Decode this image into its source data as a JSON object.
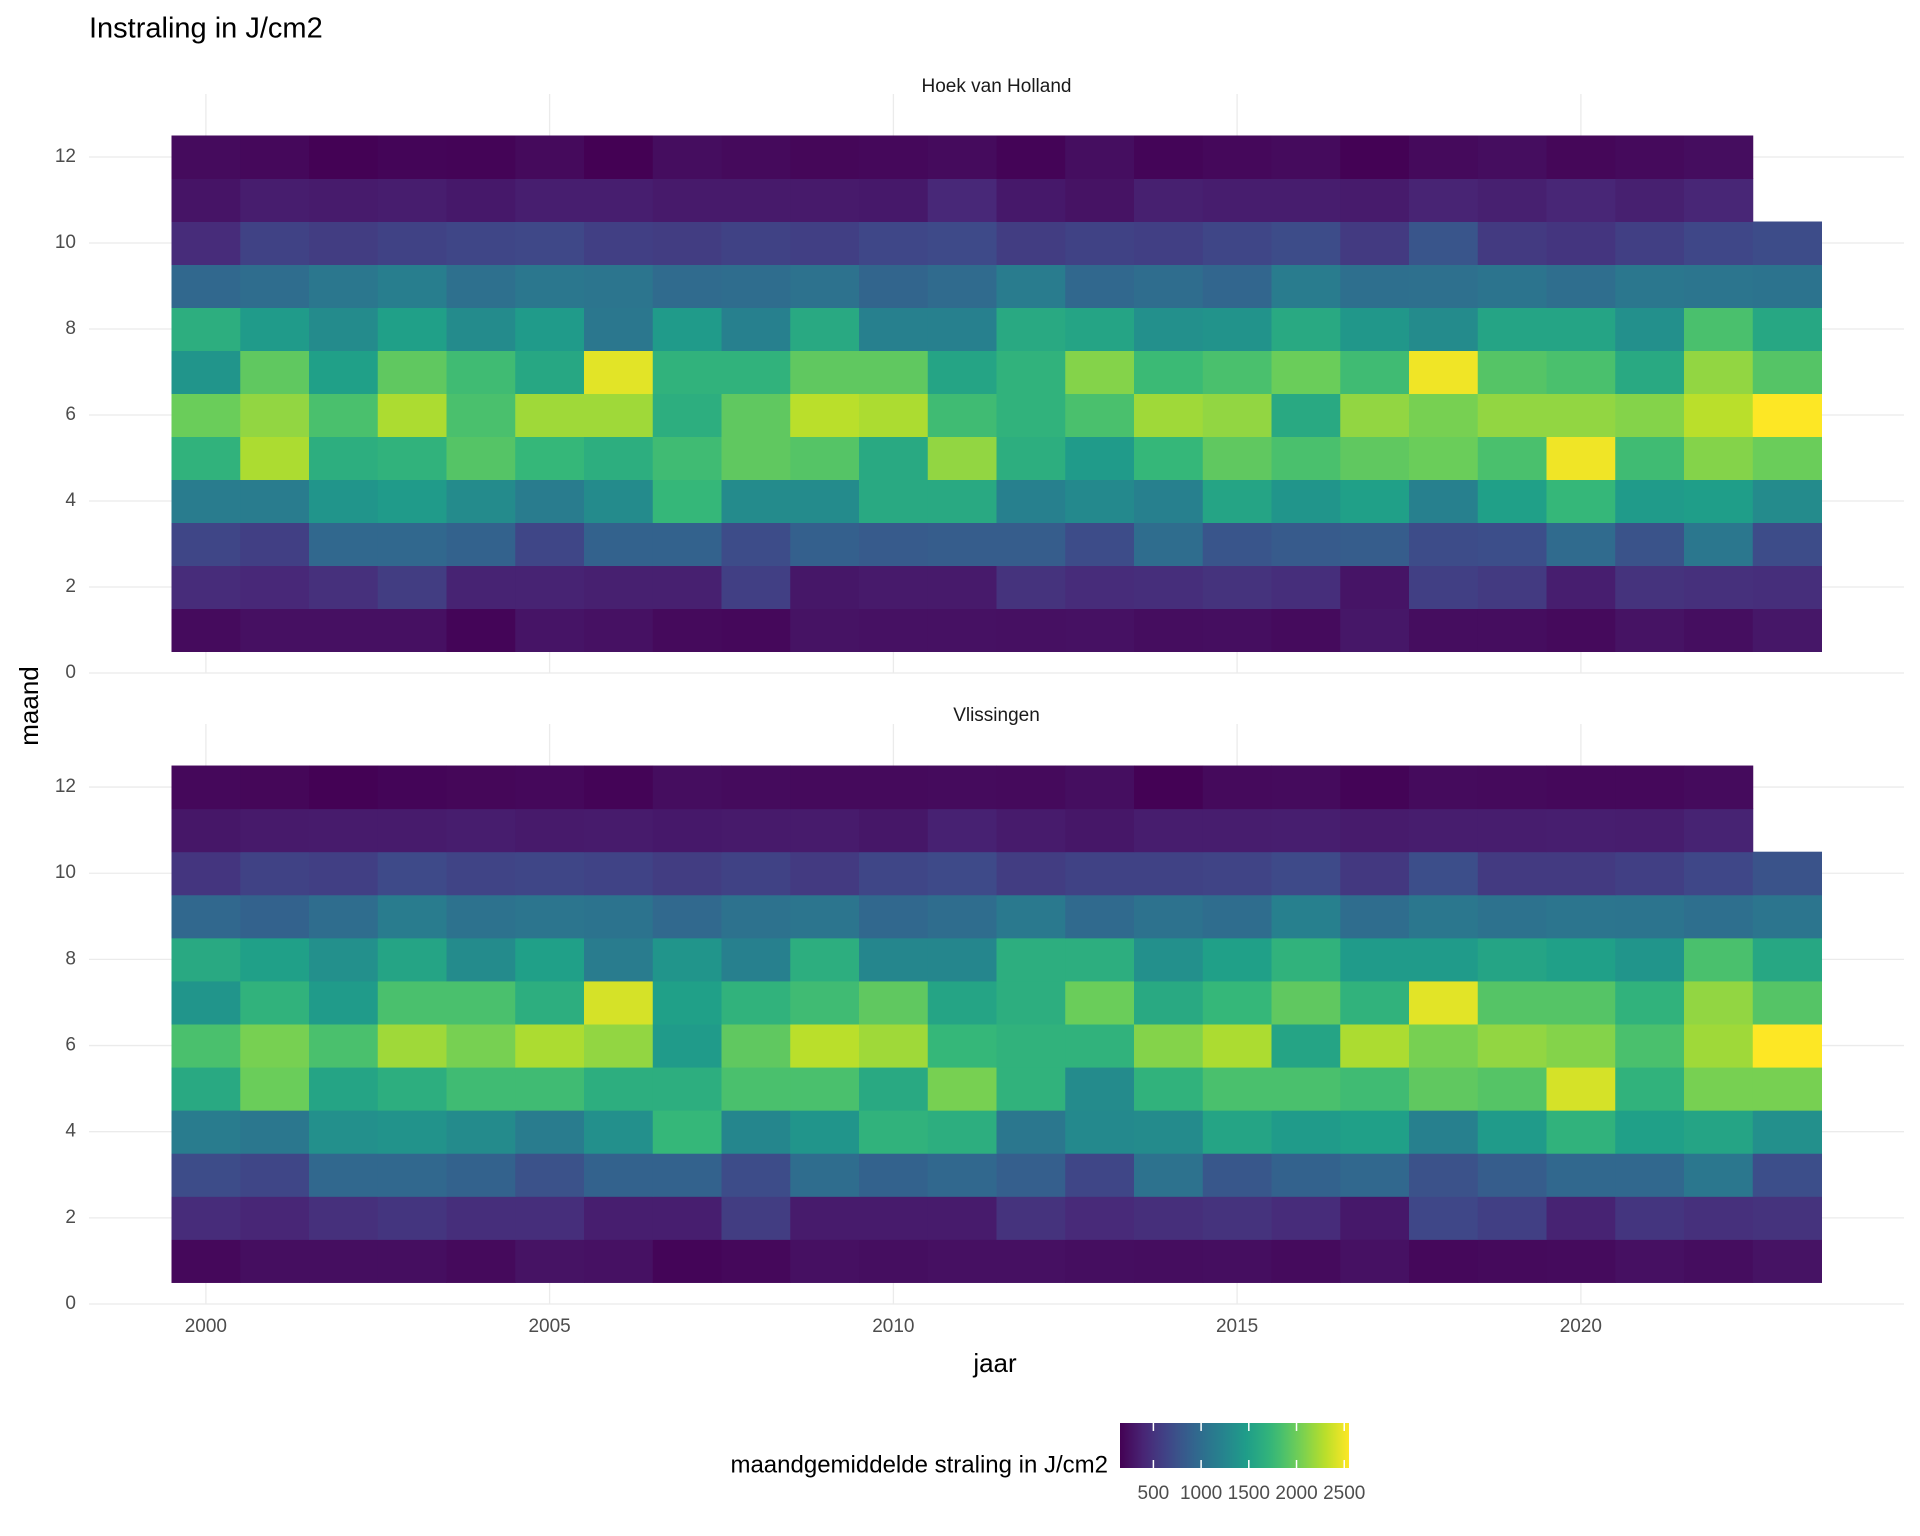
{
  "chart_data": {
    "type": "heatmap",
    "title": "Instraling in J/cm2",
    "x_label": "jaar",
    "y_label": "maand",
    "x": [
      2000,
      2001,
      2002,
      2003,
      2004,
      2005,
      2006,
      2007,
      2008,
      2009,
      2010,
      2011,
      2012,
      2013,
      2014,
      2015,
      2016,
      2017,
      2018,
      2019,
      2020,
      2021,
      2022,
      2023
    ],
    "y": [
      1,
      2,
      3,
      4,
      5,
      6,
      7,
      8,
      9,
      10,
      11,
      12
    ],
    "xlim": [
      1998.3,
      2024.7
    ],
    "xticks": [
      2000,
      2005,
      2010,
      2015,
      2020
    ],
    "ylim": [
      0,
      13
    ],
    "yticks": [
      0,
      2,
      4,
      6,
      8,
      10,
      12
    ],
    "grid": true,
    "colormap": "viridis",
    "clim": [
      150,
      2550
    ],
    "colorbar_label": "maandgemiddelde straling in J/cm2",
    "colorbar_ticks": [
      500,
      1000,
      1500,
      2000,
      2500
    ],
    "facets": [
      {
        "title": "Hoek van Holland",
        "values": [
          [
            220,
            250,
            250,
            250,
            180,
            280,
            260,
            210,
            200,
            270,
            260,
            260,
            250,
            260,
            230,
            240,
            220,
            300,
            230,
            230,
            210,
            270,
            240,
            300
          ],
          [
            450,
            420,
            480,
            580,
            380,
            380,
            360,
            360,
            600,
            300,
            320,
            320,
            500,
            450,
            460,
            500,
            460,
            280,
            600,
            560,
            350,
            500,
            480,
            460
          ],
          [
            650,
            600,
            950,
            950,
            900,
            650,
            900,
            900,
            700,
            880,
            830,
            850,
            850,
            700,
            1000,
            780,
            830,
            850,
            700,
            720,
            980,
            760,
            1100,
            700
          ],
          [
            1150,
            1150,
            1400,
            1450,
            1300,
            1150,
            1300,
            1750,
            1300,
            1300,
            1600,
            1600,
            1200,
            1280,
            1200,
            1550,
            1400,
            1500,
            1200,
            1500,
            1750,
            1450,
            1480,
            1300
          ],
          [
            1700,
            2250,
            1650,
            1700,
            1900,
            1750,
            1650,
            1800,
            1950,
            1900,
            1600,
            2150,
            1650,
            1450,
            1750,
            1950,
            1850,
            1950,
            2000,
            1850,
            2500,
            1800,
            2100,
            2000
          ],
          [
            2000,
            2150,
            1850,
            2250,
            1850,
            2200,
            2200,
            1650,
            1950,
            2300,
            2250,
            1800,
            1700,
            1850,
            2200,
            2150,
            1600,
            2150,
            2050,
            2150,
            2150,
            2100,
            2300,
            2550
          ],
          [
            1400,
            1950,
            1500,
            1950,
            1800,
            1580,
            2450,
            1700,
            1700,
            1950,
            1950,
            1550,
            1700,
            2100,
            1780,
            1850,
            2000,
            1800,
            2500,
            1900,
            1850,
            1600,
            2150,
            1900
          ],
          [
            1650,
            1450,
            1300,
            1500,
            1300,
            1450,
            1100,
            1450,
            1200,
            1600,
            1200,
            1200,
            1600,
            1550,
            1350,
            1380,
            1600,
            1420,
            1300,
            1550,
            1550,
            1350,
            1850,
            1580
          ],
          [
            950,
            1000,
            1100,
            1180,
            1030,
            1100,
            1080,
            980,
            1000,
            1050,
            920,
            980,
            1150,
            950,
            1000,
            930,
            1150,
            1020,
            1030,
            1070,
            1010,
            1100,
            1080,
            1060
          ],
          [
            450,
            620,
            580,
            620,
            650,
            670,
            600,
            580,
            620,
            600,
            660,
            680,
            580,
            620,
            600,
            650,
            700,
            560,
            780,
            560,
            520,
            600,
            660,
            700
          ],
          [
            280,
            340,
            330,
            340,
            310,
            350,
            350,
            320,
            320,
            320,
            310,
            420,
            310,
            270,
            360,
            340,
            340,
            330,
            390,
            360,
            400,
            360,
            400,
            null
          ],
          [
            220,
            200,
            160,
            180,
            170,
            210,
            150,
            230,
            210,
            190,
            200,
            220,
            170,
            240,
            180,
            200,
            220,
            160,
            210,
            230,
            190,
            210,
            230,
            null
          ]
        ]
      },
      {
        "title": "Vlissingen",
        "values": [
          [
            200,
            240,
            240,
            240,
            210,
            270,
            260,
            180,
            200,
            250,
            240,
            250,
            250,
            240,
            230,
            240,
            220,
            260,
            200,
            210,
            220,
            250,
            230,
            270
          ],
          [
            450,
            400,
            480,
            520,
            460,
            460,
            350,
            350,
            580,
            330,
            330,
            330,
            500,
            430,
            470,
            500,
            450,
            310,
            660,
            600,
            380,
            520,
            480,
            500
          ],
          [
            700,
            650,
            950,
            950,
            900,
            750,
            900,
            900,
            700,
            1000,
            900,
            950,
            870,
            650,
            1050,
            800,
            900,
            950,
            750,
            850,
            950,
            950,
            1100,
            720
          ],
          [
            1150,
            1100,
            1350,
            1380,
            1300,
            1150,
            1350,
            1750,
            1250,
            1400,
            1700,
            1650,
            1100,
            1280,
            1300,
            1550,
            1450,
            1500,
            1200,
            1450,
            1700,
            1500,
            1550,
            1350
          ],
          [
            1600,
            2000,
            1550,
            1650,
            1800,
            1800,
            1650,
            1650,
            1850,
            1850,
            1600,
            2050,
            1700,
            1300,
            1700,
            1850,
            1850,
            1800,
            1950,
            1900,
            2400,
            1700,
            2050,
            2050
          ],
          [
            1850,
            2050,
            1850,
            2200,
            2050,
            2250,
            2150,
            1450,
            1950,
            2300,
            2200,
            1750,
            1700,
            1700,
            2100,
            2250,
            1550,
            2250,
            2050,
            2150,
            2100,
            1850,
            2200,
            2600
          ],
          [
            1400,
            1700,
            1450,
            1850,
            1850,
            1650,
            2400,
            1500,
            1700,
            1800,
            1950,
            1550,
            1650,
            2000,
            1600,
            1750,
            1950,
            1700,
            2450,
            1900,
            1900,
            1700,
            2150,
            1900
          ],
          [
            1600,
            1500,
            1350,
            1550,
            1300,
            1500,
            1150,
            1400,
            1200,
            1650,
            1250,
            1250,
            1650,
            1650,
            1350,
            1500,
            1700,
            1450,
            1450,
            1550,
            1500,
            1400,
            1850,
            1580
          ],
          [
            950,
            900,
            1000,
            1150,
            1050,
            1080,
            1060,
            960,
            1050,
            1080,
            950,
            1000,
            1120,
            970,
            1050,
            1000,
            1200,
            1000,
            1100,
            1050,
            1080,
            1070,
            1020,
            1080
          ],
          [
            520,
            620,
            600,
            680,
            640,
            650,
            630,
            580,
            620,
            560,
            650,
            680,
            580,
            620,
            620,
            640,
            680,
            540,
            720,
            560,
            560,
            600,
            660,
            760
          ],
          [
            300,
            320,
            330,
            330,
            340,
            320,
            330,
            310,
            320,
            330,
            300,
            370,
            330,
            300,
            340,
            340,
            350,
            330,
            340,
            340,
            350,
            340,
            380,
            null
          ],
          [
            200,
            190,
            160,
            180,
            190,
            200,
            170,
            230,
            220,
            210,
            210,
            220,
            210,
            240,
            160,
            210,
            220,
            170,
            220,
            210,
            200,
            200,
            220,
            null
          ]
        ]
      }
    ]
  }
}
